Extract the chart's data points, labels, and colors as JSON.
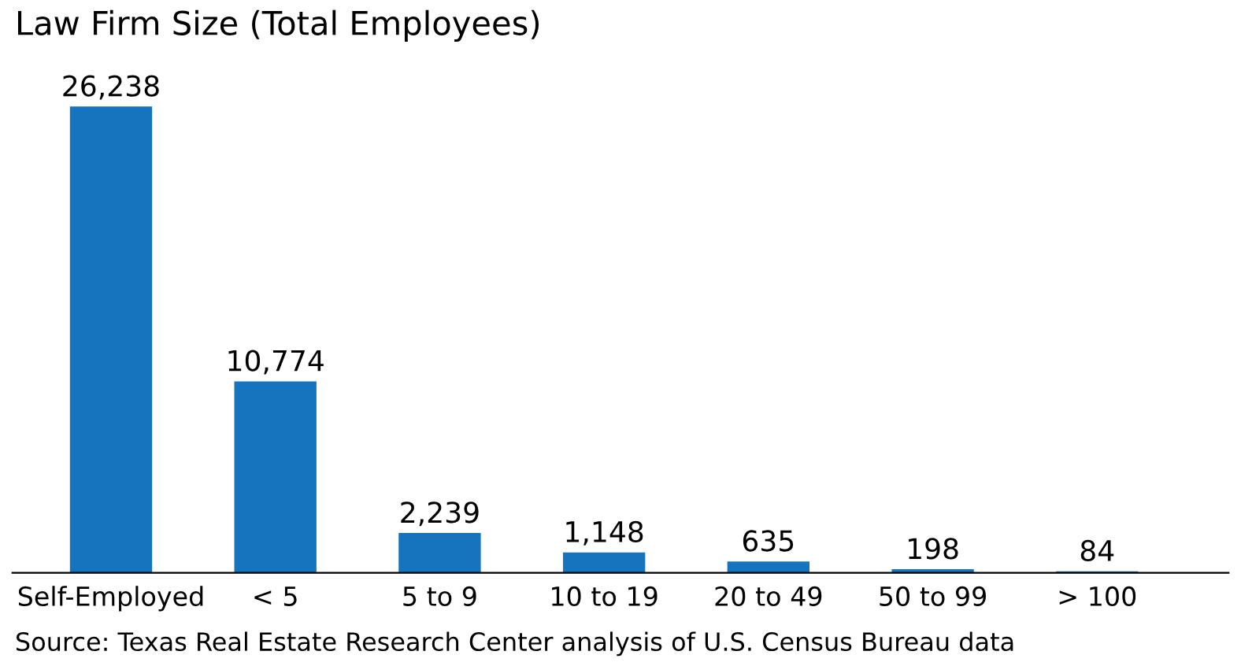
{
  "chart_data": {
    "type": "bar",
    "title": "Law Firm Size (Total Employees)",
    "categories": [
      "Self-Employed",
      "< 5",
      "5 to 9",
      "10 to 19",
      "20 to 49",
      "50 to 99",
      "> 100"
    ],
    "values": [
      26238,
      10774,
      2239,
      1148,
      635,
      198,
      84
    ],
    "value_labels": [
      "26,238",
      "10,774",
      "2,239",
      "1,148",
      "635",
      "198",
      "84"
    ],
    "color": "#1574bd",
    "annotations": [
      "Source: Texas Real Estate Research Center analysis of U.S. Census Bureau data"
    ]
  }
}
